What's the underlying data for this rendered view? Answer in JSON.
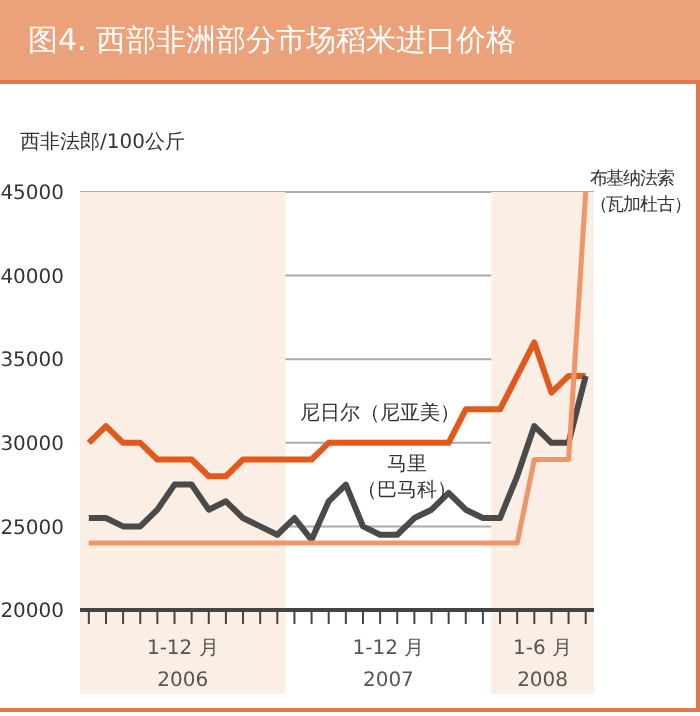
{
  "chart_data": {
    "type": "line",
    "title": "图4. 西部非洲部分市场稻米进口价格",
    "ylabel": "西非法郎/100公斤",
    "x": [
      "2006-01",
      "2006-02",
      "2006-03",
      "2006-04",
      "2006-05",
      "2006-06",
      "2006-07",
      "2006-08",
      "2006-09",
      "2006-10",
      "2006-11",
      "2006-12",
      "2007-01",
      "2007-02",
      "2007-03",
      "2007-04",
      "2007-05",
      "2007-06",
      "2007-07",
      "2007-08",
      "2007-09",
      "2007-10",
      "2007-11",
      "2007-12",
      "2008-01",
      "2008-02",
      "2008-03",
      "2008-04",
      "2008-05",
      "2008-06"
    ],
    "series": [
      {
        "name": "尼日尔（尼亚美）",
        "color": "#e05a1e",
        "values": [
          30000,
          31000,
          30000,
          30000,
          29000,
          29000,
          29000,
          28000,
          28000,
          29000,
          29000,
          29000,
          29000,
          29000,
          30000,
          30000,
          30000,
          30000,
          30000,
          30000,
          30000,
          30000,
          32000,
          32000,
          32000,
          34000,
          36000,
          33000,
          34000,
          34000
        ]
      },
      {
        "name": "马里（巴马科）",
        "color": "#4a4a4a",
        "values": [
          25500,
          25500,
          25000,
          25000,
          26000,
          27500,
          27500,
          26000,
          26500,
          25500,
          25000,
          24500,
          25500,
          24200,
          26500,
          27500,
          25000,
          24500,
          24500,
          25500,
          26000,
          27000,
          26000,
          25500,
          25500,
          28000,
          31000,
          30000,
          30000,
          34000
        ]
      },
      {
        "name": "布基纳法索（瓦加杜古）",
        "color": "#f0956a",
        "values": [
          24000,
          24000,
          24000,
          24000,
          24000,
          24000,
          24000,
          24000,
          24000,
          24000,
          24000,
          24000,
          24000,
          24000,
          24000,
          24000,
          24000,
          24000,
          24000,
          24000,
          24000,
          24000,
          24000,
          24000,
          24000,
          24000,
          29000,
          29000,
          29000,
          45000
        ]
      }
    ],
    "xlim": [
      "2005-12-16",
      "2008-06-16"
    ],
    "xticks": [
      {
        "value": "2006-01",
        "label": null
      },
      {
        "value": "2006-02",
        "label": null
      },
      {
        "value": "2006-03",
        "label": null
      },
      {
        "value": "2006-04",
        "label": null
      },
      {
        "value": "2006-05",
        "label": null
      },
      {
        "value": "2006-06",
        "label": null
      },
      {
        "value": "2006-07",
        "label": null
      },
      {
        "value": "2006-08",
        "label": null
      },
      {
        "value": "2006-09",
        "label": null
      },
      {
        "value": "2006-10",
        "label": null
      },
      {
        "value": "2006-11",
        "label": null
      },
      {
        "value": "2006-12",
        "label": null
      },
      {
        "value": "2007-01",
        "label": null
      },
      {
        "value": "2007-02",
        "label": null
      },
      {
        "value": "2007-03",
        "label": null
      },
      {
        "value": "2007-04",
        "label": null
      },
      {
        "value": "2007-05",
        "label": null
      },
      {
        "value": "2007-06",
        "label": null
      },
      {
        "value": "2007-07",
        "label": null
      },
      {
        "value": "2007-08",
        "label": null
      },
      {
        "value": "2007-09",
        "label": null
      },
      {
        "value": "2007-10",
        "label": null
      },
      {
        "value": "2007-11",
        "label": null
      },
      {
        "value": "2007-12",
        "label": null
      },
      {
        "value": "2008-01",
        "label": null
      },
      {
        "value": "2008-02",
        "label": null
      },
      {
        "value": "2008-03",
        "label": null
      },
      {
        "value": "2008-04",
        "label": null
      },
      {
        "value": "2008-05",
        "label": null
      },
      {
        "value": "2008-06",
        "label": null
      },
      {
        "value": "2006-06-16",
        "label": "1-12 月\n2006"
      },
      {
        "value": "2007-06-16",
        "label": "1-12 月\n2007"
      },
      {
        "value": "2008-03-16",
        "label": "1-6 月\n2008"
      }
    ],
    "ylim": [
      20000,
      45000
    ],
    "yticks": [
      20000,
      25000,
      30000,
      35000,
      40000,
      45000
    ],
    "grid": "y",
    "legend": false,
    "marker": "none",
    "line_style": "solid",
    "bands": [
      {
        "axis": "x",
        "from": "2005-12-16",
        "to": "2006-12-16",
        "color": "#fbeee4"
      },
      {
        "axis": "x",
        "from": "2007-12-16",
        "to": "2008-06-16",
        "color": "#fbeee4"
      }
    ]
  }
}
